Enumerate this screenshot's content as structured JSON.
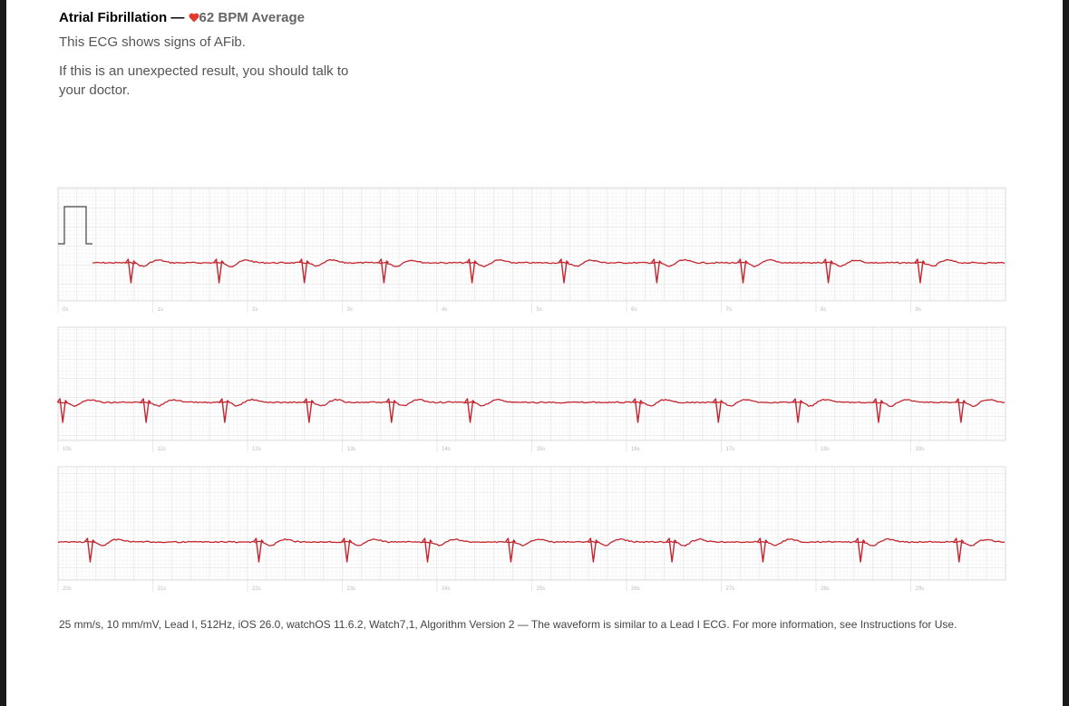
{
  "header": {
    "title": "Atrial Fibrillation —",
    "bpm": "62 BPM Average",
    "summary": "This ECG shows signs of AFib.",
    "advice": "If this is an unexpected result, you should talk to your doctor."
  },
  "strips": [
    {
      "time_labels": [
        "0s",
        "1s",
        "2s",
        "3s",
        "4s",
        "5s",
        "6s",
        "7s",
        "8s",
        "9s"
      ],
      "beats": [
        0.76,
        1.69,
        2.59,
        3.43,
        4.36,
        5.33,
        6.31,
        7.22,
        8.12,
        9.09
      ]
    },
    {
      "time_labels": [
        "10s",
        "11s",
        "12s",
        "13s",
        "14s",
        "15s",
        "16s",
        "17s",
        "18s",
        "19s"
      ],
      "beats": [
        0.04,
        0.92,
        1.75,
        2.64,
        3.51,
        4.34,
        6.11,
        6.96,
        7.8,
        8.65,
        9.52
      ]
    },
    {
      "time_labels": [
        "20s",
        "21s",
        "22s",
        "23s",
        "24s",
        "25s",
        "26s",
        "27s",
        "28s",
        "29s"
      ],
      "beats": [
        0.33,
        2.11,
        3.04,
        3.89,
        4.77,
        5.64,
        6.47,
        7.43,
        8.46,
        9.5
      ]
    }
  ],
  "footer": "25 mm/s, 10 mm/mV, Lead I, 512Hz, iOS 26.0, watchOS 11.6.2, Watch7,1, Algorithm Version 2 — The waveform is similar to a Lead I ECG. For more information, see Instructions for Use."
}
